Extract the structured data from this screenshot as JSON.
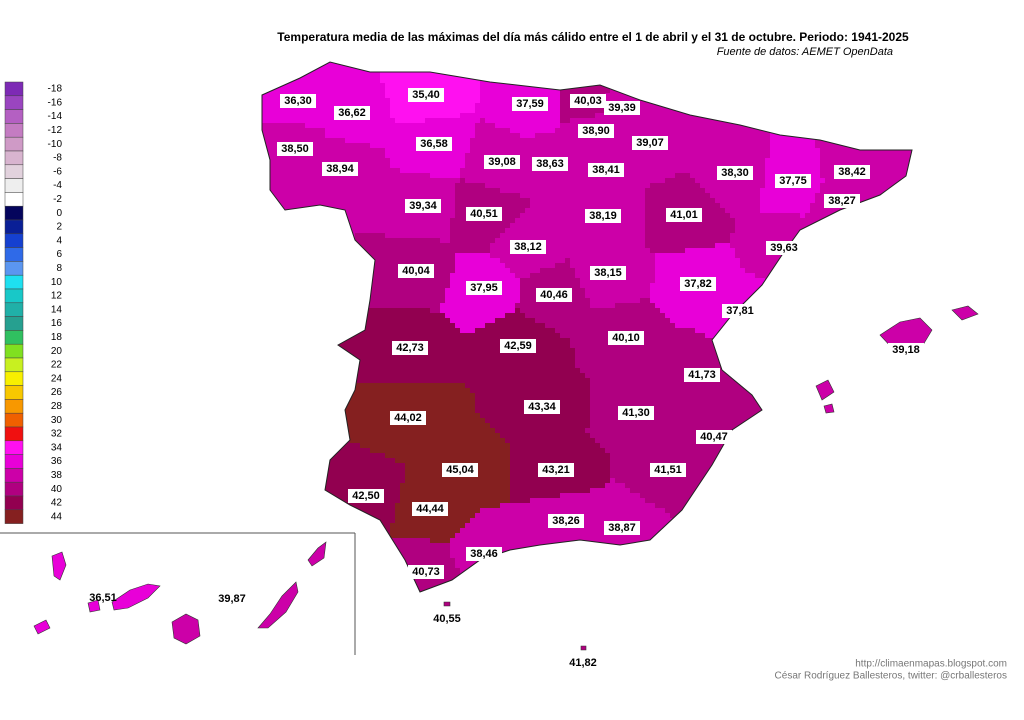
{
  "title": "Temperatura media de las máximas del  día más cálido entre el 1 de abril y el 31 de octubre. Periodo: 1941-2025",
  "source": "Fuente de datos: AEMET OpenData",
  "legend": [
    {
      "value": -18,
      "color": "#7d2ab5"
    },
    {
      "value": -16,
      "color": "#9a45c0"
    },
    {
      "value": -14,
      "color": "#b460c2"
    },
    {
      "value": -12,
      "color": "#c47cc2"
    },
    {
      "value": -10,
      "color": "#cf9ac6"
    },
    {
      "value": -8,
      "color": "#d8b4cf"
    },
    {
      "value": -6,
      "color": "#e2d2dd"
    },
    {
      "value": -4,
      "color": "#eeeeee"
    },
    {
      "value": -2,
      "color": "#ffffff"
    },
    {
      "value": 0,
      "color": "#04045c"
    },
    {
      "value": 2,
      "color": "#0a1f96"
    },
    {
      "value": 4,
      "color": "#1540d0"
    },
    {
      "value": 6,
      "color": "#2f6ae8"
    },
    {
      "value": 8,
      "color": "#5b96f0"
    },
    {
      "value": 10,
      "color": "#1ee0f0"
    },
    {
      "value": 12,
      "color": "#18c8c8"
    },
    {
      "value": 14,
      "color": "#20b0a8"
    },
    {
      "value": 16,
      "color": "#26a090"
    },
    {
      "value": 18,
      "color": "#30c060"
    },
    {
      "value": 20,
      "color": "#80e020"
    },
    {
      "value": 22,
      "color": "#c8f020"
    },
    {
      "value": 24,
      "color": "#f8f000"
    },
    {
      "value": 26,
      "color": "#f8c800"
    },
    {
      "value": 28,
      "color": "#f89800"
    },
    {
      "value": 30,
      "color": "#f06000"
    },
    {
      "value": 32,
      "color": "#f01010"
    },
    {
      "value": 34,
      "color": "#ff10f0"
    },
    {
      "value": 36,
      "color": "#e800d8"
    },
    {
      "value": 38,
      "color": "#cc00a8"
    },
    {
      "value": 40,
      "color": "#b00080"
    },
    {
      "value": 42,
      "color": "#920050"
    },
    {
      "value": 44,
      "color": "#852020"
    }
  ],
  "regions": [
    {
      "value": 36.3,
      "label": "36,30"
    },
    {
      "value": 35.4,
      "label": "35,40"
    },
    {
      "value": 37.59,
      "label": "37,59"
    },
    {
      "value": 40.03,
      "label": "40,03"
    },
    {
      "value": 39.39,
      "label": "39,39"
    },
    {
      "value": 36.62,
      "label": "36,62"
    },
    {
      "value": 38.9,
      "label": "38,90"
    },
    {
      "value": 39.07,
      "label": "39,07"
    },
    {
      "value": 36.58,
      "label": "36,58"
    },
    {
      "value": 39.08,
      "label": "39,08"
    },
    {
      "value": 38.63,
      "label": "38,63"
    },
    {
      "value": 38.5,
      "label": "38,50"
    },
    {
      "value": 38.41,
      "label": "38,41"
    },
    {
      "value": 38.3,
      "label": "38,30"
    },
    {
      "value": 37.75,
      "label": "37,75"
    },
    {
      "value": 38.42,
      "label": "38,42"
    },
    {
      "value": 38.94,
      "label": "38,94"
    },
    {
      "value": 39.34,
      "label": "39,34"
    },
    {
      "value": 40.51,
      "label": "40,51"
    },
    {
      "value": 38.19,
      "label": "38,19"
    },
    {
      "value": 41.01,
      "label": "41,01"
    },
    {
      "value": 38.27,
      "label": "38,27"
    },
    {
      "value": 39.63,
      "label": "39,63"
    },
    {
      "value": 38.12,
      "label": "38,12"
    },
    {
      "value": 40.04,
      "label": "40,04"
    },
    {
      "value": 37.95,
      "label": "37,95"
    },
    {
      "value": 40.46,
      "label": "40,46"
    },
    {
      "value": 38.15,
      "label": "38,15"
    },
    {
      "value": 37.82,
      "label": "37,82"
    },
    {
      "value": 37.81,
      "label": "37,81"
    },
    {
      "value": 42.73,
      "label": "42,73"
    },
    {
      "value": 42.59,
      "label": "42,59"
    },
    {
      "value": 40.1,
      "label": "40,10"
    },
    {
      "value": 41.73,
      "label": "41,73"
    },
    {
      "value": 44.02,
      "label": "44,02"
    },
    {
      "value": 43.34,
      "label": "43,34"
    },
    {
      "value": 41.3,
      "label": "41,30"
    },
    {
      "value": 40.47,
      "label": "40,47"
    },
    {
      "value": 45.04,
      "label": "45,04"
    },
    {
      "value": 43.21,
      "label": "43,21"
    },
    {
      "value": 41.51,
      "label": "41,51"
    },
    {
      "value": 42.5,
      "label": "42,50"
    },
    {
      "value": 44.44,
      "label": "44,44"
    },
    {
      "value": 38.26,
      "label": "38,26"
    },
    {
      "value": 38.87,
      "label": "38,87"
    },
    {
      "value": 38.46,
      "label": "38,46"
    },
    {
      "value": 40.73,
      "label": "40,73"
    },
    {
      "value": 39.18,
      "label": "39,18"
    },
    {
      "value": 36.51,
      "label": "36,51"
    },
    {
      "value": 39.87,
      "label": "39,87"
    },
    {
      "value": 40.55,
      "label": "40,55"
    },
    {
      "value": 41.82,
      "label": "41,82"
    }
  ],
  "credits": [
    "http://climaenmapas.blogspot.com",
    "César Rodríguez Ballesteros, twitter: @crballesteros"
  ]
}
